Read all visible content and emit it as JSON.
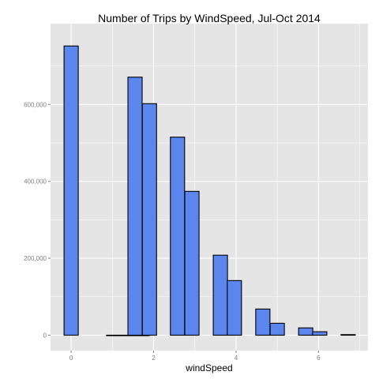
{
  "chart_data": {
    "type": "bar",
    "title": "Number of Trips by WindSpeed, Jul-Oct 2014",
    "xlabel": "windSpeed",
    "ylabel": "",
    "xlim": [
      -0.5,
      7.2
    ],
    "ylim": [
      -40000,
      810000
    ],
    "x_ticks": [
      0,
      2,
      4,
      6
    ],
    "x_tick_labels": [
      "0",
      "2",
      "4",
      "6"
    ],
    "y_ticks": [
      0,
      200000,
      400000,
      600000
    ],
    "y_tick_labels": [
      "0",
      "200,000",
      "400,000",
      "600,000"
    ],
    "bin_width": 0.345,
    "bins": [
      {
        "x": 0.0,
        "count": 752000
      },
      {
        "x": 1.03,
        "count": 0
      },
      {
        "x": 1.38,
        "count": 0
      },
      {
        "x": 1.72,
        "count": 0
      },
      {
        "x": 1.55,
        "count": 671000
      },
      {
        "x": 1.9,
        "count": 602000
      },
      {
        "x": 2.58,
        "count": 515000
      },
      {
        "x": 2.93,
        "count": 374000
      },
      {
        "x": 3.62,
        "count": 208000
      },
      {
        "x": 3.96,
        "count": 142000
      },
      {
        "x": 4.65,
        "count": 68000
      },
      {
        "x": 5.0,
        "count": 31000
      },
      {
        "x": 5.69,
        "count": 19000
      },
      {
        "x": 6.03,
        "count": 9000
      },
      {
        "x": 6.72,
        "count": 1500
      }
    ],
    "grid": true,
    "colors": {
      "fill": "#5b86ee",
      "outline": "#000000",
      "panel": "#e5e5e5",
      "grid": "#ffffff"
    }
  }
}
